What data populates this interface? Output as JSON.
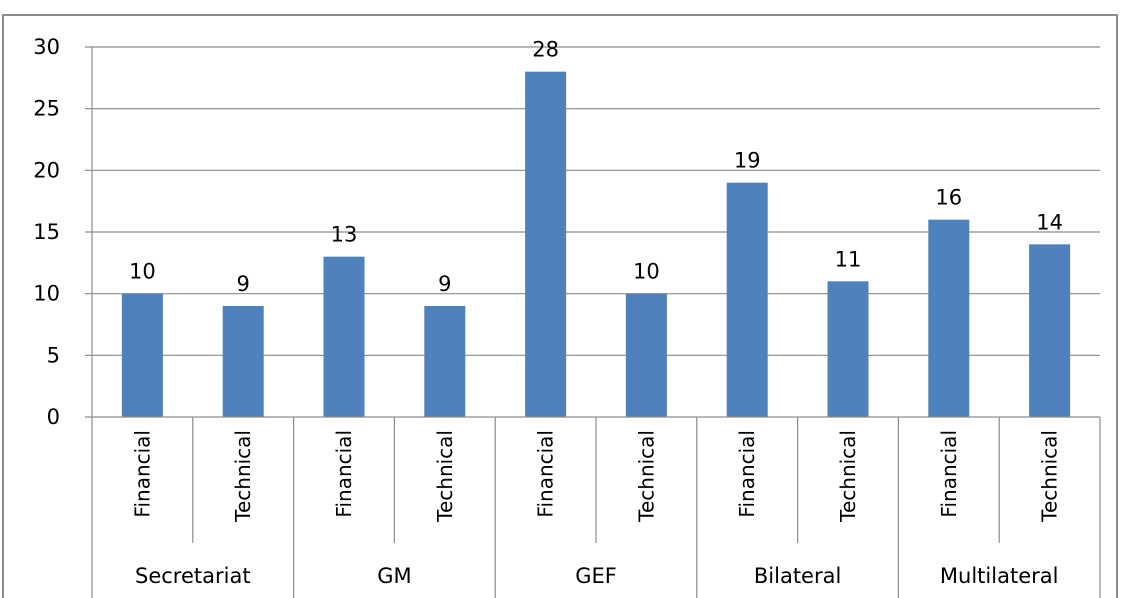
{
  "chart_data": {
    "type": "bar",
    "groups": [
      "Secretariat",
      "GM",
      "GEF",
      "Bilateral",
      "Multilateral"
    ],
    "categories": [
      "Financial",
      "Technical",
      "Financial",
      "Technical",
      "Financial",
      "Technical",
      "Financial",
      "Technical",
      "Financial",
      "Technical"
    ],
    "values": [
      10,
      9,
      13,
      9,
      28,
      10,
      19,
      11,
      16,
      14
    ],
    "data_labels": [
      "10",
      "9",
      "13",
      "9",
      "28",
      "10",
      "19",
      "11",
      "16",
      "14"
    ],
    "y_ticks": [
      "0",
      "5",
      "10",
      "15",
      "20",
      "25",
      "30"
    ],
    "ylim": [
      0,
      30
    ],
    "bar_color": "#4f81bd",
    "grid": true,
    "legend": "none"
  }
}
